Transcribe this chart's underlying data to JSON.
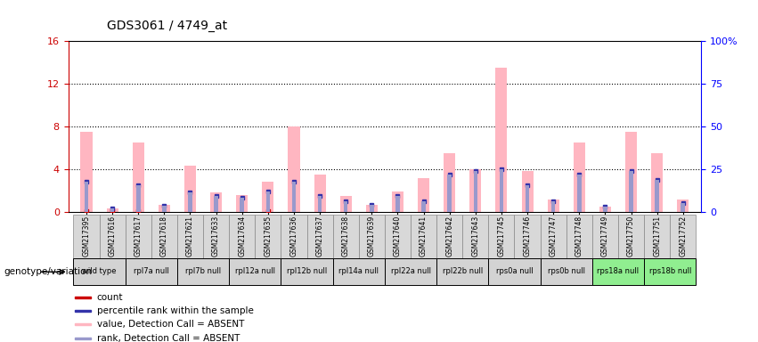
{
  "title": "GDS3061 / 4749_at",
  "samples": [
    "GSM217395",
    "GSM217616",
    "GSM217617",
    "GSM217618",
    "GSM217621",
    "GSM217633",
    "GSM217634",
    "GSM217635",
    "GSM217636",
    "GSM217637",
    "GSM217638",
    "GSM217639",
    "GSM217640",
    "GSM217641",
    "GSM217642",
    "GSM217643",
    "GSM217745",
    "GSM217746",
    "GSM217747",
    "GSM217748",
    "GSM217749",
    "GSM217750",
    "GSM217751",
    "GSM217752"
  ],
  "absent_value": [
    7.5,
    0.35,
    6.5,
    0.65,
    4.3,
    1.8,
    1.6,
    2.8,
    8.0,
    3.5,
    1.5,
    0.7,
    1.9,
    3.2,
    5.5,
    4.0,
    13.5,
    3.8,
    1.2,
    6.5,
    0.5,
    7.5,
    5.5,
    1.2
  ],
  "absent_rank": [
    2.8,
    0.3,
    2.5,
    0.55,
    1.8,
    1.5,
    1.3,
    1.9,
    2.8,
    1.5,
    1.0,
    0.7,
    1.5,
    1.0,
    3.5,
    3.8,
    4.0,
    2.5,
    1.0,
    3.5,
    0.5,
    3.8,
    3.0,
    0.8
  ],
  "count_values": [
    0.12,
    0.08,
    0.08,
    0.0,
    0.0,
    0.0,
    0.0,
    0.08,
    0.0,
    0.0,
    0.0,
    0.0,
    0.0,
    0.0,
    0.0,
    0.0,
    0.0,
    0.0,
    0.0,
    0.0,
    0.0,
    0.0,
    0.0,
    0.0
  ],
  "rank_values": [
    2.8,
    0.3,
    2.5,
    0.55,
    1.8,
    1.5,
    1.3,
    1.9,
    2.8,
    1.5,
    1.0,
    0.7,
    1.5,
    1.0,
    3.5,
    3.8,
    4.0,
    2.5,
    1.0,
    3.5,
    0.5,
    3.8,
    3.0,
    0.8
  ],
  "genotype_groups": [
    {
      "label": "wild type",
      "start": 0,
      "end": 2,
      "color": "#d3d3d3"
    },
    {
      "label": "rpl7a null",
      "start": 2,
      "end": 4,
      "color": "#d3d3d3"
    },
    {
      "label": "rpl7b null",
      "start": 4,
      "end": 6,
      "color": "#d3d3d3"
    },
    {
      "label": "rpl12a null",
      "start": 6,
      "end": 8,
      "color": "#d3d3d3"
    },
    {
      "label": "rpl12b null",
      "start": 8,
      "end": 10,
      "color": "#d3d3d3"
    },
    {
      "label": "rpl14a null",
      "start": 10,
      "end": 12,
      "color": "#d3d3d3"
    },
    {
      "label": "rpl22a null",
      "start": 12,
      "end": 14,
      "color": "#d3d3d3"
    },
    {
      "label": "rpl22b null",
      "start": 14,
      "end": 16,
      "color": "#d3d3d3"
    },
    {
      "label": "rps0a null",
      "start": 16,
      "end": 18,
      "color": "#d3d3d3"
    },
    {
      "label": "rps0b null",
      "start": 18,
      "end": 20,
      "color": "#d3d3d3"
    },
    {
      "label": "rps18a null",
      "start": 20,
      "end": 22,
      "color": "#90ee90"
    },
    {
      "label": "rps18b null",
      "start": 22,
      "end": 24,
      "color": "#90ee90"
    }
  ],
  "ylim_left": [
    0,
    16
  ],
  "ylim_right": [
    0,
    100
  ],
  "yticks_left": [
    0,
    4,
    8,
    12,
    16
  ],
  "yticks_right": [
    0,
    25,
    50,
    75,
    100
  ],
  "absent_bar_color": "#ffb6c1",
  "rank_bar_color": "#9999cc",
  "count_color": "#cc0000",
  "percentile_color": "#3333aa",
  "background_color": "#ffffff",
  "legend_items": [
    {
      "label": "count",
      "color": "#cc0000"
    },
    {
      "label": "percentile rank within the sample",
      "color": "#3333aa"
    },
    {
      "label": "value, Detection Call = ABSENT",
      "color": "#ffb6c1"
    },
    {
      "label": "rank, Detection Call = ABSENT",
      "color": "#9999cc"
    }
  ]
}
